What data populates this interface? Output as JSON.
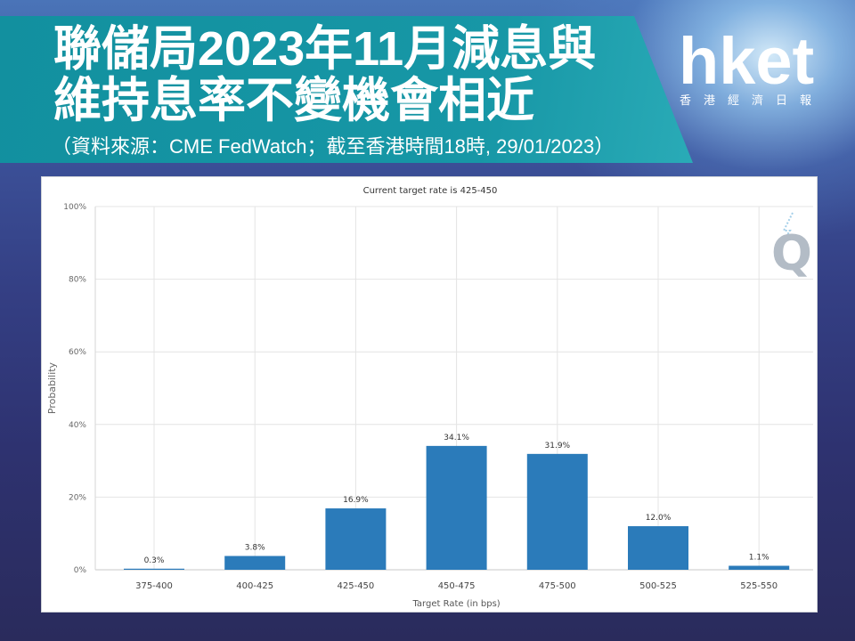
{
  "slide": {
    "title_line1": "聯儲局2023年11月減息與",
    "title_line2": "維持息率不變機會相近",
    "source": "（資料來源：CME FedWatch；截至香港時間18時, 29/01/2023）"
  },
  "logo": {
    "brand": "hket",
    "name": "香港經濟日報"
  },
  "colors": {
    "banner": "#1797a6",
    "bar": "#2b7bba",
    "grid": "#e4e4e4"
  },
  "chart_data": {
    "type": "bar",
    "title": "Current target rate is 425-450",
    "xlabel": "Target Rate (in bps)",
    "ylabel": "Probability",
    "categories": [
      "375-400",
      "400-425",
      "425-450",
      "450-475",
      "475-500",
      "500-525",
      "525-550"
    ],
    "values": [
      0.3,
      3.8,
      16.9,
      34.1,
      31.9,
      12.0,
      1.1
    ],
    "data_labels": [
      "0.3%",
      "3.8%",
      "16.9%",
      "34.1%",
      "31.9%",
      "12.0%",
      "1.1%"
    ],
    "yticks": [
      "0%",
      "20%",
      "40%",
      "60%",
      "80%",
      "100%"
    ],
    "ylim": [
      0,
      100
    ],
    "grid": true,
    "watermark": "Q"
  }
}
